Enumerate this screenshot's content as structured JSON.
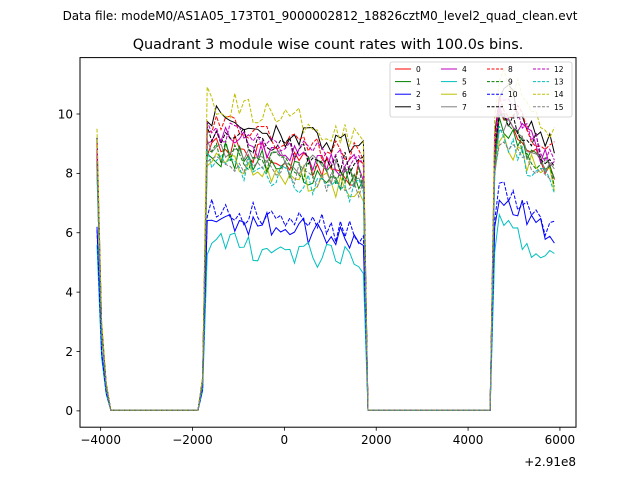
{
  "suptitle": "Data file: modeM0/AS1A05_173T01_9000002812_18826cztM0_level2_quad_clean.evt",
  "chart_data": {
    "type": "line",
    "title": "Quadrant 3 module wise count rates with 100.0s bins.",
    "xlabel": "",
    "ylabel": "",
    "x_offset_label": "+2.91e8",
    "xlim": [
      -4450,
      6350
    ],
    "ylim": [
      -0.55,
      11.9
    ],
    "x_ticks": [
      -4000,
      -2000,
      0,
      2000,
      4000,
      6000
    ],
    "x_tick_labels": [
      "−4000",
      "−2000",
      "0",
      "2000",
      "4000",
      "6000"
    ],
    "y_ticks": [
      0,
      2,
      4,
      6,
      8,
      10
    ],
    "y_tick_labels": [
      "0",
      "2",
      "4",
      "6",
      "8",
      "10"
    ],
    "grid": false,
    "legend_position": "top-right",
    "segments": [
      {
        "start": -4080,
        "end": -1780,
        "bin": 100,
        "edge_lo_x": -3980,
        "edge_hi_x": -1880
      },
      {
        "start": -1780,
        "end": 2080,
        "bin": 100,
        "edge_lo_x": -1780,
        "edge_hi_x": 1780
      },
      {
        "start": 4480,
        "end": 5880,
        "bin": 100,
        "edge_lo_x": 4480,
        "edge_hi_x": 5880
      }
    ],
    "series": [
      {
        "name": "0",
        "color": "#ff0000",
        "dashed": false,
        "level": 8.1,
        "first_value": 8.6
      },
      {
        "name": "1",
        "color": "#008000",
        "dashed": false,
        "level": 7.8,
        "first_value": 8.3
      },
      {
        "name": "2",
        "color": "#0000ff",
        "dashed": false,
        "level": 5.9,
        "first_value": 6.2
      },
      {
        "name": "3",
        "color": "#000000",
        "dashed": false,
        "level": 8.9,
        "first_value": 9.2
      },
      {
        "name": "4",
        "color": "#bf00bf",
        "dashed": false,
        "level": 8.3,
        "first_value": 8.7
      },
      {
        "name": "5",
        "color": "#00bfbf",
        "dashed": false,
        "level": 5.1,
        "first_value": 5.6
      },
      {
        "name": "6",
        "color": "#bfbf00",
        "dashed": false,
        "level": 7.6,
        "first_value": 8.1
      },
      {
        "name": "7",
        "color": "#808080",
        "dashed": false,
        "level": 8.0,
        "first_value": 8.2
      },
      {
        "name": "8",
        "color": "#ff0000",
        "dashed": true,
        "level": 8.7,
        "first_value": 9.0
      },
      {
        "name": "9",
        "color": "#008000",
        "dashed": true,
        "level": 7.9,
        "first_value": 8.4
      },
      {
        "name": "10",
        "color": "#0000ff",
        "dashed": true,
        "level": 6.1,
        "first_value": 6.1
      },
      {
        "name": "11",
        "color": "#000000",
        "dashed": true,
        "level": 8.4,
        "first_value": 8.8
      },
      {
        "name": "12",
        "color": "#bf00bf",
        "dashed": true,
        "level": 8.5,
        "first_value": 8.8
      },
      {
        "name": "13",
        "color": "#00bfbf",
        "dashed": true,
        "level": 7.5,
        "first_value": 7.9
      },
      {
        "name": "14",
        "color": "#bfbf00",
        "dashed": true,
        "level": 9.4,
        "first_value": 9.5
      },
      {
        "name": "15",
        "color": "#808080",
        "dashed": true,
        "level": 7.7,
        "first_value": 8.1
      }
    ]
  }
}
